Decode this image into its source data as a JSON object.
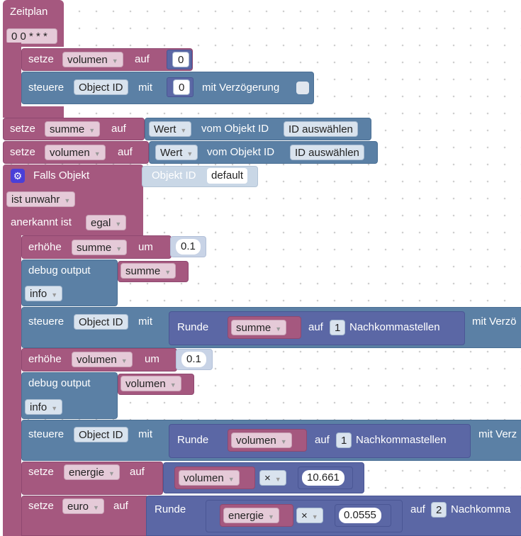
{
  "hat": {
    "title": "Zeitplan",
    "cron": "0 0 * * *"
  },
  "block1": {
    "setze": "setze",
    "var": "volumen",
    "auf": "auf",
    "value": "0"
  },
  "block2": {
    "steuere": "steuere",
    "object": "Object ID",
    "mit": "mit",
    "value": "0",
    "delay": "mit Verzögerung"
  },
  "block3": {
    "setze": "setze",
    "var": "summe",
    "auf": "auf",
    "wert": "Wert",
    "vom": "vom Objekt ID",
    "pick": "ID auswählen"
  },
  "block4": {
    "setze": "setze",
    "var": "volumen",
    "auf": "auf",
    "wert": "Wert",
    "vom": "vom Objekt ID",
    "pick": "ID auswählen"
  },
  "trigger": {
    "falls": "Falls Objekt",
    "objekt": "Objekt ID",
    "default": "default",
    "ist": "ist unwahr",
    "anerkannt": "anerkannt ist",
    "egal": "egal"
  },
  "b_erh1": {
    "label": "erhöhe",
    "var": "summe",
    "um": "um",
    "value": "0.1"
  },
  "b_dbg1": {
    "label": "debug output",
    "var": "summe",
    "level": "info"
  },
  "b_st1": {
    "steuere": "steuere",
    "object": "Object ID",
    "mit": "mit",
    "runde": "Runde",
    "var": "summe",
    "auf": "auf",
    "digits": "1",
    "nach": "Nachkommastellen",
    "verz": "mit Verzö"
  },
  "b_erh2": {
    "label": "erhöhe",
    "var": "volumen",
    "um": "um",
    "value": "0.1"
  },
  "b_dbg2": {
    "label": "debug output",
    "var": "volumen",
    "level": "info"
  },
  "b_st2": {
    "steuere": "steuere",
    "object": "Object ID",
    "mit": "mit",
    "runde": "Runde",
    "var": "volumen",
    "auf": "auf",
    "digits": "1",
    "nach": "Nachkommastellen",
    "verz": "mit Verz"
  },
  "b_en": {
    "setze": "setze",
    "var": "energie",
    "auf": "auf",
    "x": "volumen",
    "op": "×",
    "value": "10.661"
  },
  "b_eu": {
    "setze": "setze",
    "var": "euro",
    "auf": "auf",
    "runde": "Runde",
    "x": "energie",
    "op": "×",
    "value": "0.0555",
    "auf2": "auf",
    "digits": "2",
    "nach": "Nachkomma"
  },
  "arrow": "▼"
}
